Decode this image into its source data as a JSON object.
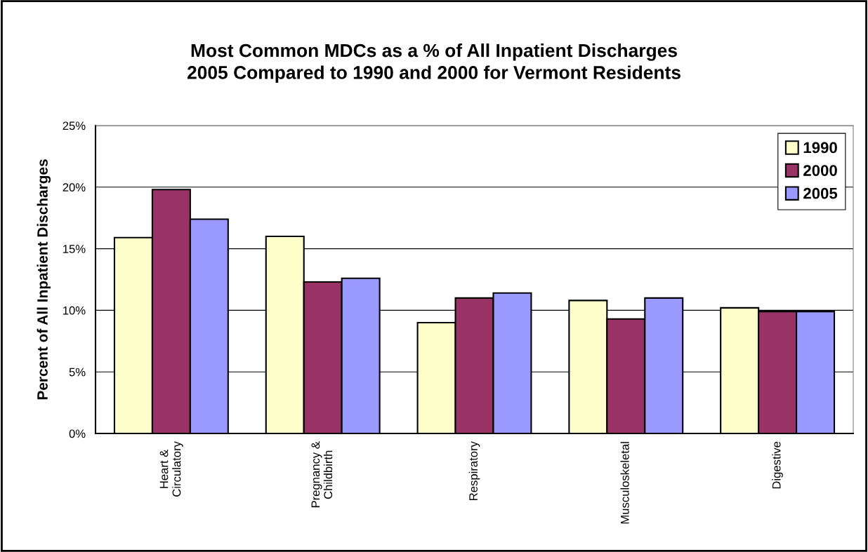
{
  "chart_data": {
    "type": "bar",
    "title": "Most Common MDCs as a % of All Inpatient Discharges\n2005 Compared to 1990 and 2000 for Vermont Residents",
    "ylabel": "Percent of All Inpatient Discharges",
    "categories": [
      "Heart &\nCirculatory",
      "Pregnancy &\nChildbirth",
      "Respiratory",
      "Musculoskeletal",
      "Digestive"
    ],
    "series": [
      {
        "name": "1990",
        "color": "#ffffcc",
        "values": [
          15.9,
          16.0,
          9.0,
          10.8,
          10.2
        ]
      },
      {
        "name": "2000",
        "color": "#993366",
        "values": [
          19.8,
          12.3,
          11.0,
          9.3,
          9.9
        ]
      },
      {
        "name": "2005",
        "color": "#9999ff",
        "values": [
          17.4,
          12.6,
          11.4,
          11.0,
          9.9
        ]
      }
    ],
    "ylim": [
      0,
      25
    ],
    "yticks": [
      {
        "value": 0,
        "label": "0%"
      },
      {
        "value": 5,
        "label": "5%"
      },
      {
        "value": 10,
        "label": "10%"
      },
      {
        "value": 15,
        "label": "15%"
      },
      {
        "value": 20,
        "label": "20%"
      },
      {
        "value": 25,
        "label": "25%"
      }
    ],
    "grid": "y",
    "legend": "top right"
  }
}
